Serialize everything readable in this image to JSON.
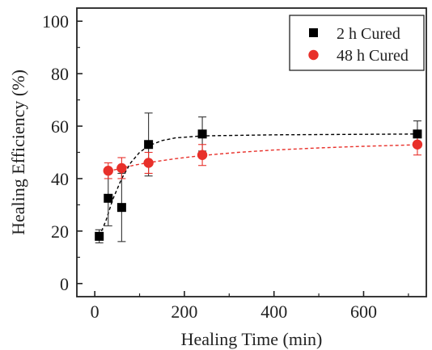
{
  "chart_data": {
    "type": "scatter",
    "title": "",
    "xlabel": "Healing Time (min)",
    "ylabel": "Healing Efficiency (%)",
    "xlim": [
      -40,
      740
    ],
    "ylim": [
      -5,
      105
    ],
    "xticks": [
      0,
      200,
      400,
      600
    ],
    "yticks": [
      0,
      20,
      40,
      60,
      80,
      100
    ],
    "legend_position": "top-right",
    "grid": false,
    "series": [
      {
        "name": "2 h Cured",
        "marker": "square",
        "color": "#000000",
        "points": [
          {
            "x": 10,
            "y": 18,
            "err": 2.5
          },
          {
            "x": 30,
            "y": 32.5,
            "err": 10.5
          },
          {
            "x": 60,
            "y": 29,
            "err": 13
          },
          {
            "x": 120,
            "y": 53,
            "err": 12
          },
          {
            "x": 240,
            "y": 57,
            "err": 6.5
          },
          {
            "x": 720,
            "y": 57,
            "err": 5
          }
        ],
        "fit": [
          [
            15,
            20
          ],
          [
            25,
            24
          ],
          [
            40,
            32
          ],
          [
            60,
            40
          ],
          [
            80,
            46
          ],
          [
            100,
            50
          ],
          [
            120,
            52.5
          ],
          [
            150,
            54.5
          ],
          [
            180,
            55.5
          ],
          [
            240,
            56.3
          ],
          [
            400,
            56.7
          ],
          [
            720,
            57
          ]
        ]
      },
      {
        "name": "48 h Cured",
        "marker": "circle",
        "color": "#e8302a",
        "points": [
          {
            "x": 30,
            "y": 43,
            "err": 3
          },
          {
            "x": 60,
            "y": 44,
            "err": 4
          },
          {
            "x": 120,
            "y": 46,
            "err": 4
          },
          {
            "x": 240,
            "y": 49,
            "err": 4
          },
          {
            "x": 720,
            "y": 53,
            "err": 4
          }
        ],
        "fit": [
          [
            30,
            42.8
          ],
          [
            60,
            44
          ],
          [
            90,
            45.2
          ],
          [
            120,
            46.1
          ],
          [
            180,
            47.6
          ],
          [
            240,
            48.8
          ],
          [
            320,
            50
          ],
          [
            400,
            50.9
          ],
          [
            500,
            51.7
          ],
          [
            600,
            52.3
          ],
          [
            720,
            52.9
          ]
        ]
      }
    ]
  }
}
